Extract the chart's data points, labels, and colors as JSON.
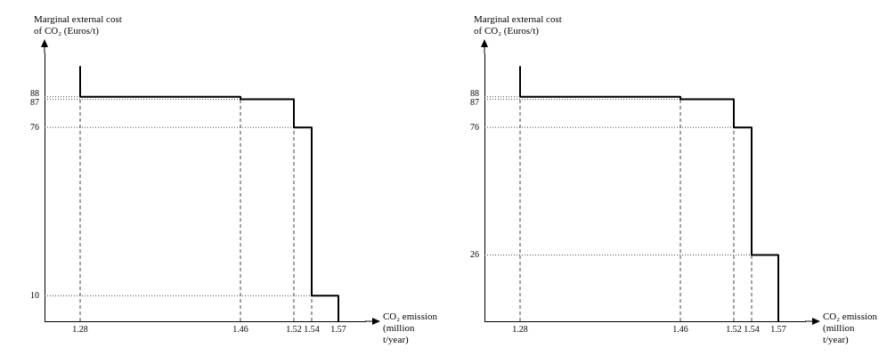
{
  "chart_data": [
    {
      "type": "step",
      "x": [
        1.28,
        1.28,
        1.46,
        1.52,
        1.54,
        1.57
      ],
      "values": [
        100,
        88,
        87,
        76,
        10,
        0
      ],
      "color": "#000000",
      "xlim": [
        1.24,
        1.6
      ],
      "xticks": [
        1.28,
        1.46,
        1.52,
        1.54,
        1.57
      ],
      "ylim": [
        0,
        105
      ],
      "yticks": [
        10,
        76,
        87,
        88
      ],
      "ylabel": "Marginal external cost of CO₂ (Euros/t)",
      "xlabel": "CO₂ emission (million t/year)",
      "ref_lines": [
        {
          "axis": "y",
          "value": 88,
          "line_style": "dotted"
        },
        {
          "axis": "y",
          "value": 87,
          "line_style": "dotted"
        },
        {
          "axis": "y",
          "value": 76,
          "line_style": "dotted"
        },
        {
          "axis": "y",
          "value": 10,
          "line_style": "dotted"
        },
        {
          "axis": "x",
          "value": 1.28,
          "line_style": "dashed"
        },
        {
          "axis": "x",
          "value": 1.46,
          "line_style": "dashed"
        },
        {
          "axis": "x",
          "value": 1.52,
          "line_style": "dashed"
        },
        {
          "axis": "x",
          "value": 1.54,
          "line_style": "dashed"
        }
      ]
    },
    {
      "type": "step",
      "x": [
        1.28,
        1.28,
        1.46,
        1.52,
        1.54,
        1.57
      ],
      "values": [
        100,
        88,
        87,
        76,
        26,
        0
      ],
      "color": "#000000",
      "xlim": [
        1.24,
        1.6
      ],
      "xticks": [
        1.28,
        1.46,
        1.52,
        1.54,
        1.57
      ],
      "ylim": [
        0,
        105
      ],
      "yticks": [
        26,
        76,
        87,
        88
      ],
      "ylabel": "Marginal external cost of CO₂ (Euros/t)",
      "xlabel": "CO₂ emission (million t/year)",
      "ref_lines": [
        {
          "axis": "y",
          "value": 88,
          "line_style": "dotted"
        },
        {
          "axis": "y",
          "value": 87,
          "line_style": "dotted"
        },
        {
          "axis": "y",
          "value": 76,
          "line_style": "dotted"
        },
        {
          "axis": "y",
          "value": 26,
          "line_style": "dotted"
        },
        {
          "axis": "x",
          "value": 1.28,
          "line_style": "dashed"
        },
        {
          "axis": "x",
          "value": 1.46,
          "line_style": "dashed"
        },
        {
          "axis": "x",
          "value": 1.52,
          "line_style": "dashed"
        },
        {
          "axis": "x",
          "value": 1.54,
          "line_style": "dashed"
        }
      ]
    }
  ]
}
